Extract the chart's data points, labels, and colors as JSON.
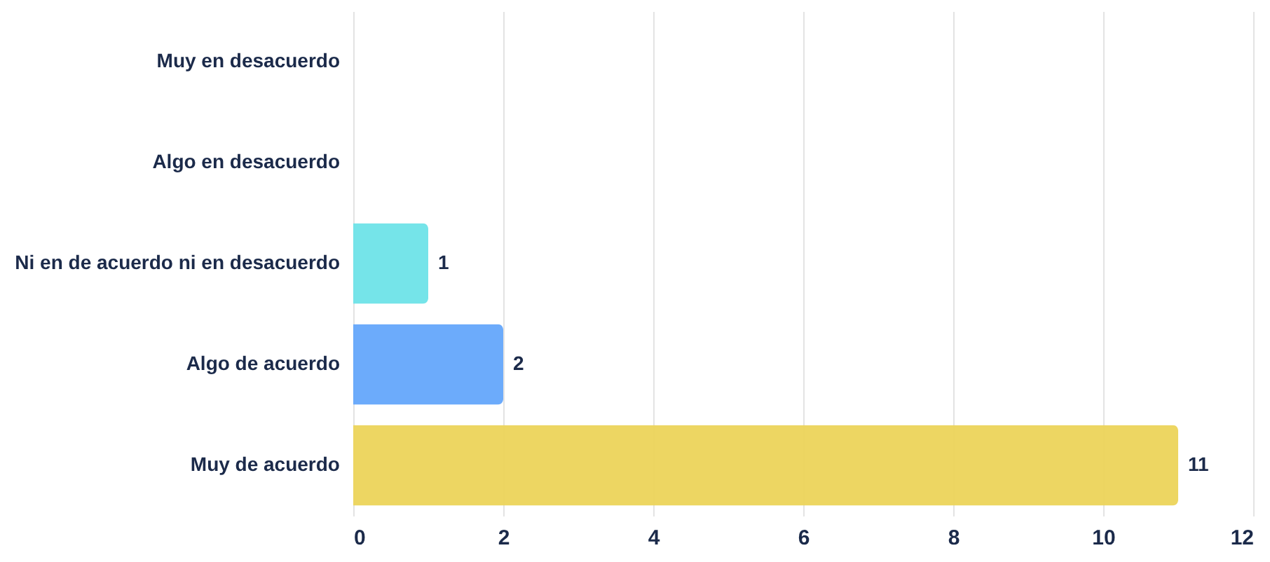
{
  "chart_data": {
    "type": "bar",
    "orientation": "horizontal",
    "categories": [
      "Muy en desacuerdo",
      "Algo en desacuerdo",
      "Ni en de acuerdo ni en desacuerdo",
      "Algo de acuerdo",
      "Muy de acuerdo"
    ],
    "values": [
      0,
      0,
      1,
      2,
      11
    ],
    "colors": [
      "#6ee3e8",
      "#64a6fb",
      "#6ee3e8",
      "#64a6fb",
      "#ecd45a"
    ],
    "value_labels": [
      null,
      null,
      "1",
      "2",
      "11"
    ],
    "xlim": [
      0,
      12
    ],
    "xticks": [
      0,
      2,
      4,
      6,
      8,
      10,
      12
    ],
    "grid": "x",
    "legend": false
  }
}
